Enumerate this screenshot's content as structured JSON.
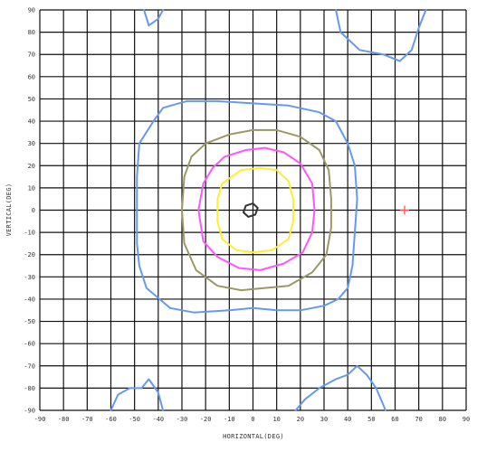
{
  "chart_data": {
    "type": "line",
    "title": "",
    "xlabel": "HORIZONTAL(DEG)",
    "ylabel": "VERTICAL(DEG)",
    "xlim": [
      -90,
      90
    ],
    "ylim": [
      -90,
      90
    ],
    "xticks": [
      -90,
      -80,
      -70,
      -60,
      -50,
      -40,
      -30,
      -20,
      -10,
      0,
      10,
      20,
      30,
      40,
      50,
      60,
      70,
      80,
      90
    ],
    "yticks": [
      90,
      80,
      70,
      60,
      50,
      40,
      30,
      20,
      10,
      0,
      -10,
      -20,
      -30,
      -40,
      -50,
      -60,
      -70,
      -80,
      -90
    ],
    "grid": true,
    "grid_color": "#111111",
    "series": [
      {
        "color": "#6699ee",
        "closed": true,
        "points": [
          [
            -48,
            30
          ],
          [
            -42,
            40
          ],
          [
            -38,
            46
          ],
          [
            -28,
            49
          ],
          [
            -15,
            49
          ],
          [
            0,
            48
          ],
          [
            15,
            47
          ],
          [
            28,
            44
          ],
          [
            35,
            40
          ],
          [
            40,
            30
          ],
          [
            43,
            20
          ],
          [
            44,
            5
          ],
          [
            43,
            -10
          ],
          [
            42,
            -25
          ],
          [
            40,
            -35
          ],
          [
            36,
            -40
          ],
          [
            30,
            -43
          ],
          [
            20,
            -45
          ],
          [
            10,
            -45
          ],
          [
            0,
            -44
          ],
          [
            -10,
            -45
          ],
          [
            -25,
            -46
          ],
          [
            -35,
            -44
          ],
          [
            -45,
            -35
          ],
          [
            -48,
            -25
          ],
          [
            -49,
            -15
          ],
          [
            -49,
            0
          ],
          [
            -49,
            15
          ]
        ]
      },
      {
        "color": "#999966",
        "closed": true,
        "points": [
          [
            -20,
            30
          ],
          [
            -10,
            34
          ],
          [
            0,
            36
          ],
          [
            10,
            36
          ],
          [
            20,
            33
          ],
          [
            28,
            27
          ],
          [
            32,
            18
          ],
          [
            33,
            5
          ],
          [
            33,
            -8
          ],
          [
            31,
            -20
          ],
          [
            25,
            -28
          ],
          [
            15,
            -34
          ],
          [
            5,
            -35
          ],
          [
            -5,
            -36
          ],
          [
            -15,
            -34
          ],
          [
            -24,
            -27
          ],
          [
            -29,
            -15
          ],
          [
            -30,
            0
          ],
          [
            -29,
            15
          ],
          [
            -26,
            24
          ]
        ]
      },
      {
        "color": "#ff55ff",
        "closed": true,
        "points": [
          [
            -12,
            24
          ],
          [
            -3,
            27
          ],
          [
            5,
            28
          ],
          [
            13,
            26
          ],
          [
            20,
            21
          ],
          [
            25,
            12
          ],
          [
            26,
            0
          ],
          [
            25,
            -10
          ],
          [
            21,
            -19
          ],
          [
            13,
            -24
          ],
          [
            3,
            -27
          ],
          [
            -6,
            -26
          ],
          [
            -15,
            -21
          ],
          [
            -21,
            -14
          ],
          [
            -23,
            0
          ],
          [
            -21,
            12
          ],
          [
            -17,
            19
          ]
        ]
      },
      {
        "color": "#ffee33",
        "closed": true,
        "points": [
          [
            -5,
            18
          ],
          [
            3,
            19
          ],
          [
            10,
            18
          ],
          [
            15,
            13
          ],
          [
            17,
            5
          ],
          [
            17,
            -5
          ],
          [
            15,
            -13
          ],
          [
            8,
            -18
          ],
          [
            0,
            -19
          ],
          [
            -7,
            -18
          ],
          [
            -13,
            -13
          ],
          [
            -15,
            -5
          ],
          [
            -15,
            5
          ],
          [
            -13,
            12
          ]
        ]
      },
      {
        "color": "#333333",
        "closed": true,
        "points": [
          [
            -3,
            2
          ],
          [
            0,
            3
          ],
          [
            2,
            1
          ],
          [
            1,
            -2
          ],
          [
            -2,
            -3
          ],
          [
            -4,
            -1
          ]
        ]
      },
      {
        "color": "#6699ee",
        "closed": false,
        "points": [
          [
            -46,
            90
          ],
          [
            -44,
            83
          ],
          [
            -40,
            86
          ],
          [
            -38,
            90
          ]
        ]
      },
      {
        "color": "#6699ee",
        "closed": false,
        "points": [
          [
            35,
            90
          ],
          [
            37,
            80
          ],
          [
            45,
            72
          ],
          [
            55,
            70
          ],
          [
            62,
            67
          ],
          [
            67,
            72
          ],
          [
            70,
            82
          ],
          [
            73,
            90
          ]
        ]
      },
      {
        "color": "#6699ee",
        "closed": false,
        "points": [
          [
            -60,
            -90
          ],
          [
            -57,
            -83
          ],
          [
            -52,
            -80
          ],
          [
            -47,
            -80
          ],
          [
            -44,
            -76
          ],
          [
            -40,
            -82
          ],
          [
            -38,
            -90
          ]
        ]
      },
      {
        "color": "#6699ee",
        "closed": false,
        "points": [
          [
            18,
            -90
          ],
          [
            22,
            -85
          ],
          [
            28,
            -80
          ],
          [
            35,
            -76
          ],
          [
            40,
            -74
          ],
          [
            44,
            -70
          ],
          [
            48,
            -74
          ],
          [
            52,
            -80
          ],
          [
            56,
            -90
          ]
        ]
      }
    ],
    "markers": [
      {
        "shape": "plus",
        "x": 64,
        "y": 0,
        "color": "#ff5555"
      }
    ]
  }
}
